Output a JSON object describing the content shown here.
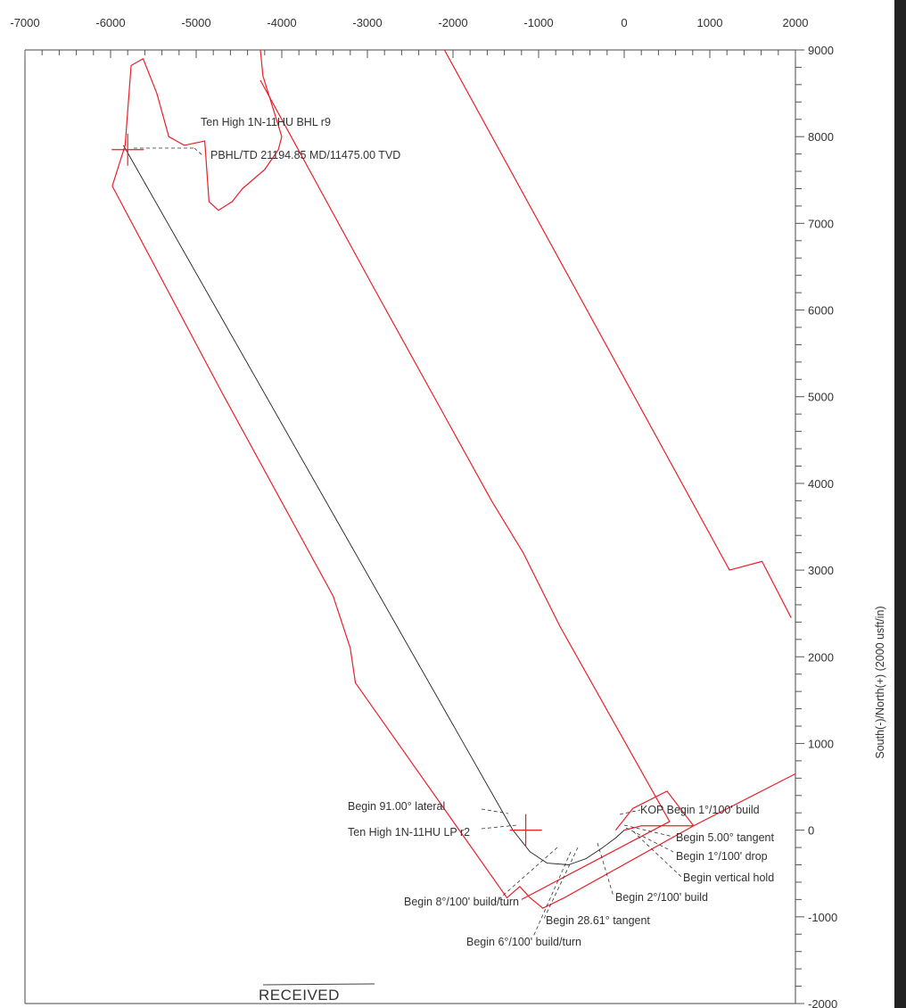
{
  "chart_data": {
    "type": "line",
    "title": "",
    "xlabel": "",
    "ylabel": "South(-)/North(+) (2000 usft/in)",
    "xlim": [
      -7000,
      2000
    ],
    "ylim": [
      -2000,
      9000
    ],
    "x_ticks": [
      "-7000",
      "-6000",
      "-5000",
      "-4000",
      "-3000",
      "-2000",
      "-1000",
      "0",
      "1000",
      "2000"
    ],
    "y_ticks": [
      "9000",
      "8000",
      "7000",
      "6000",
      "5000",
      "4000",
      "3000",
      "2000",
      "1000",
      "0",
      "-1000",
      "-2000"
    ],
    "grid": false,
    "series": [
      {
        "name": "",
        "color": "#222222",
        "points": [
          [
            0,
            0
          ],
          [
            -100,
            -90
          ],
          [
            -250,
            -200
          ],
          [
            -450,
            -330
          ],
          [
            -650,
            -400
          ],
          [
            -900,
            -380
          ],
          [
            -1100,
            -250
          ],
          [
            -1300,
            0
          ],
          [
            -5850,
            7900
          ]
        ]
      },
      {
        "name": "",
        "color": "#e8202a",
        "points": [
          [
            -5980,
            7430
          ],
          [
            -5830,
            7900
          ],
          [
            -5760,
            8820
          ],
          [
            -5620,
            8900
          ],
          [
            -5460,
            8500
          ],
          [
            -5320,
            8000
          ],
          [
            -5140,
            7900
          ],
          [
            -4900,
            7950
          ],
          [
            -4850,
            7250
          ],
          [
            -4740,
            7150
          ],
          [
            -4580,
            7250
          ],
          [
            -4460,
            7400
          ],
          [
            -4200,
            7620
          ],
          [
            -4040,
            7850
          ],
          [
            -4000,
            8000
          ],
          [
            -4220,
            8700
          ],
          [
            -4250,
            9000
          ]
        ]
      },
      {
        "name": "",
        "color": "#e8202a",
        "points": [
          [
            -4250,
            8650
          ],
          [
            -2950,
            6300
          ],
          [
            -1550,
            3800
          ],
          [
            -1180,
            3200
          ],
          [
            -750,
            2350
          ],
          [
            530,
            100
          ],
          [
            -1200,
            -800
          ]
        ]
      },
      {
        "name": "",
        "color": "#e8202a",
        "points": [
          [
            -5980,
            7430
          ],
          [
            -4700,
            5050
          ],
          [
            -3400,
            2700
          ],
          [
            -3200,
            2100
          ],
          [
            -3140,
            1700
          ],
          [
            -1370,
            -780
          ],
          [
            -1220,
            -650
          ],
          [
            -1100,
            -780
          ],
          [
            -950,
            -900
          ],
          [
            -700,
            -780
          ],
          [
            810,
            50
          ],
          [
            2000,
            650
          ]
        ]
      },
      {
        "name": "",
        "color": "#e8202a",
        "points": [
          [
            -2100,
            9000
          ],
          [
            1230,
            3000
          ],
          [
            1610,
            3100
          ],
          [
            1950,
            2450
          ]
        ]
      },
      {
        "name": "",
        "color": "#e8202a",
        "points": [
          [
            -100,
            0
          ],
          [
            100,
            250
          ],
          [
            500,
            450
          ],
          [
            810,
            50
          ],
          [
            200,
            50
          ],
          [
            0,
            0
          ]
        ]
      }
    ],
    "markers": [
      {
        "name": "Ten High 1N-11HU BHL r9",
        "x": -5800,
        "y": 7850
      },
      {
        "name": "Ten High 1N-11HU LP r2",
        "x": -1150,
        "y": 0
      }
    ],
    "annotations": [
      "Ten High 1N-11HU BHL r9",
      "PBHL/TD 21194.85 MD/11475.00 TVD",
      "Begin 91.00° lateral",
      "Ten High 1N-11HU LP r2",
      "KOP Begin 1°/100' build",
      "Begin 5.00° tangent",
      "Begin 1°/100' drop",
      "Begin vertical hold",
      "Begin 2°/100' build",
      "Begin 8°/100' build/turn",
      "Begin 28.61° tangent",
      "Begin 6°/100' build/turn",
      "RECEIVED"
    ]
  }
}
